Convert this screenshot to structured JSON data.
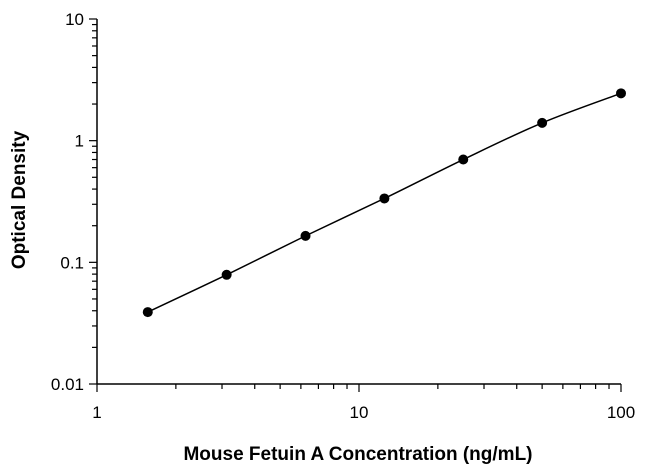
{
  "chart_data": {
    "type": "scatter",
    "title": "",
    "xlabel": "Mouse Fetuin A Concentration (ng/mL)",
    "ylabel": "Optical Density",
    "x_scale": "log",
    "y_scale": "log",
    "xlim": [
      1,
      100
    ],
    "ylim": [
      0.01,
      10
    ],
    "x_tick_labels": [
      "1",
      "10",
      "100"
    ],
    "y_tick_labels": [
      "10",
      "1",
      "0.1",
      "0.01"
    ],
    "grid": false,
    "legend": "none",
    "series": [
      {
        "x": [
          1.5625,
          3.125,
          6.25,
          12.5,
          25,
          50,
          100
        ],
        "y": [
          0.039,
          0.079,
          0.165,
          0.335,
          0.7,
          1.4,
          2.45
        ],
        "marker": "filled-circle",
        "fit_line": true,
        "color": "#000000"
      }
    ]
  }
}
